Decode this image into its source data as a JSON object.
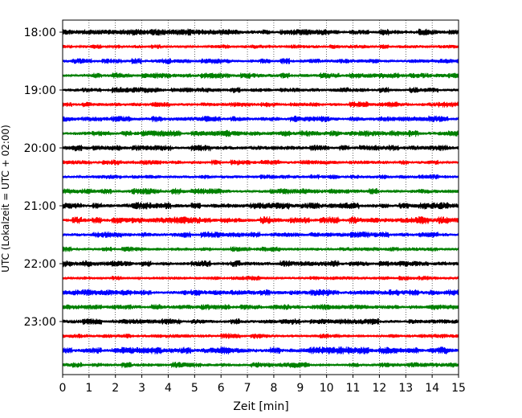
{
  "chart_data": {
    "type": "line",
    "xlabel": "Zeit  [min]",
    "ylabel": "UTC (Lokalzeit = UTC + 02:00)",
    "xlim": [
      0,
      15
    ],
    "xticks": [
      "0",
      "1",
      "2",
      "3",
      "4",
      "5",
      "6",
      "7",
      "8",
      "9",
      "10",
      "11",
      "12",
      "13",
      "14",
      "15"
    ],
    "yticks": [
      "18:00",
      "19:00",
      "20:00",
      "21:00",
      "22:00",
      "23:00"
    ],
    "grid": "vertical dotted lines at each minute",
    "trace_colors": [
      "#000000",
      "#ff0000",
      "#0000ff",
      "#008000"
    ],
    "traces": [
      {
        "start": "18:00",
        "color": "#000000",
        "minutes_shown": 15,
        "amplitude": 0.25
      },
      {
        "start": "18:15",
        "color": "#ff0000",
        "minutes_shown": 15,
        "amplitude": 0.18
      },
      {
        "start": "18:30",
        "color": "#0000ff",
        "minutes_shown": 15,
        "amplitude": 0.22
      },
      {
        "start": "18:45",
        "color": "#008000",
        "minutes_shown": 15,
        "amplitude": 0.22
      },
      {
        "start": "19:00",
        "color": "#000000",
        "minutes_shown": 15,
        "amplitude": 0.22
      },
      {
        "start": "19:15",
        "color": "#ff0000",
        "minutes_shown": 15,
        "amplitude": 0.22
      },
      {
        "start": "19:30",
        "color": "#0000ff",
        "minutes_shown": 15,
        "amplitude": 0.24
      },
      {
        "start": "19:45",
        "color": "#008000",
        "minutes_shown": 15,
        "amplitude": 0.25
      },
      {
        "start": "20:00",
        "color": "#000000",
        "minutes_shown": 15,
        "amplitude": 0.24
      },
      {
        "start": "20:15",
        "color": "#ff0000",
        "minutes_shown": 15,
        "amplitude": 0.2
      },
      {
        "start": "20:30",
        "color": "#0000ff",
        "minutes_shown": 15,
        "amplitude": 0.2
      },
      {
        "start": "20:45",
        "color": "#008000",
        "minutes_shown": 15,
        "amplitude": 0.24
      },
      {
        "start": "21:00",
        "color": "#000000",
        "minutes_shown": 15,
        "amplitude": 0.26
      },
      {
        "start": "21:15",
        "color": "#ff0000",
        "minutes_shown": 15,
        "amplitude": 0.28
      },
      {
        "start": "21:30",
        "color": "#0000ff",
        "minutes_shown": 15,
        "amplitude": 0.24
      },
      {
        "start": "21:45",
        "color": "#008000",
        "minutes_shown": 15,
        "amplitude": 0.2
      },
      {
        "start": "22:00",
        "color": "#000000",
        "minutes_shown": 15,
        "amplitude": 0.25
      },
      {
        "start": "22:15",
        "color": "#ff0000",
        "minutes_shown": 15,
        "amplitude": 0.18
      },
      {
        "start": "22:30",
        "color": "#0000ff",
        "minutes_shown": 15,
        "amplitude": 0.24
      },
      {
        "start": "22:45",
        "color": "#008000",
        "minutes_shown": 15,
        "amplitude": 0.22
      },
      {
        "start": "23:00",
        "color": "#000000",
        "minutes_shown": 15,
        "amplitude": 0.24
      },
      {
        "start": "23:15",
        "color": "#ff0000",
        "minutes_shown": 15,
        "amplitude": 0.2
      },
      {
        "start": "23:30",
        "color": "#0000ff",
        "minutes_shown": 15,
        "amplitude": 0.28
      },
      {
        "start": "23:45",
        "color": "#008000",
        "minutes_shown": 15,
        "amplitude": 0.22
      }
    ]
  }
}
